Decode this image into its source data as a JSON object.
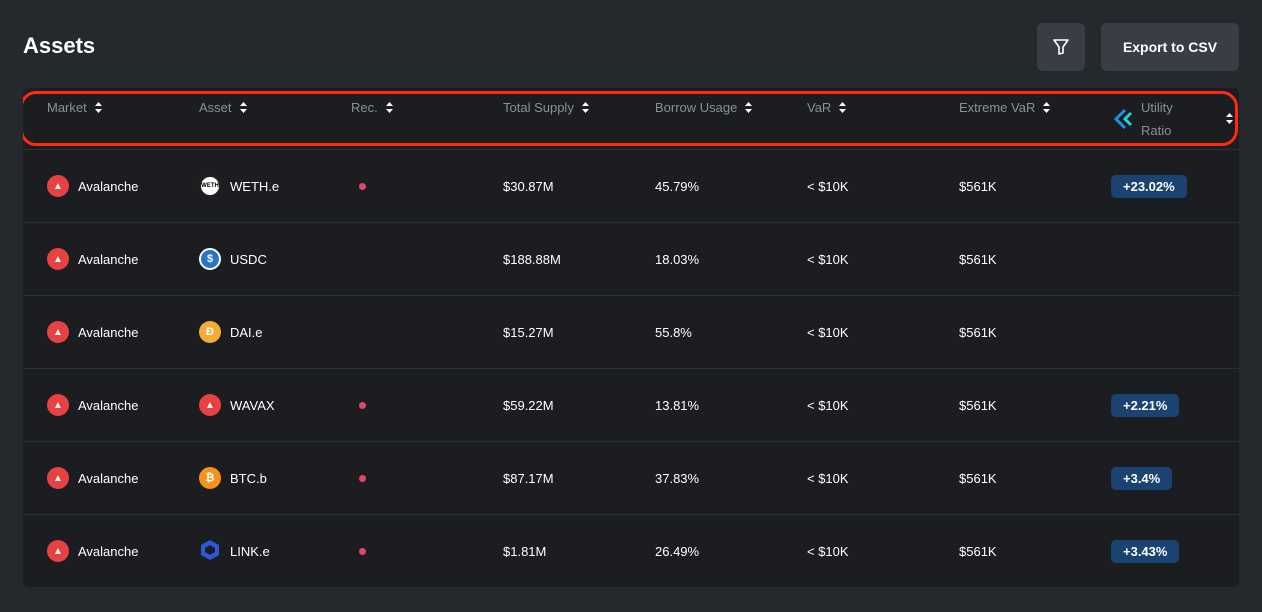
{
  "title": "Assets",
  "export_label": "Export to CSV",
  "columns": [
    "Market",
    "Asset",
    "Rec.",
    "Total Supply",
    "Borrow Usage",
    "VaR",
    "Extreme VaR",
    "Utility",
    "Ratio"
  ],
  "colors": {
    "badge": "#1b4372",
    "rec_dot": "#e0476a",
    "annotation": "#ff2a10"
  },
  "rows": [
    {
      "market": "Avalanche",
      "asset": "WETH.e",
      "icon": "weth-icon",
      "rec": true,
      "supply": "$30.87M",
      "borrow": "45.79%",
      "var": "< $10K",
      "evar": "$561K",
      "util": "+23.02%"
    },
    {
      "market": "Avalanche",
      "asset": "USDC",
      "icon": "usdc-icon",
      "rec": false,
      "supply": "$188.88M",
      "borrow": "18.03%",
      "var": "< $10K",
      "evar": "$561K",
      "util": null
    },
    {
      "market": "Avalanche",
      "asset": "DAI.e",
      "icon": "dai-icon",
      "rec": false,
      "supply": "$15.27M",
      "borrow": "55.8%",
      "var": "< $10K",
      "evar": "$561K",
      "util": null
    },
    {
      "market": "Avalanche",
      "asset": "WAVAX",
      "icon": "avax-icon",
      "rec": true,
      "supply": "$59.22M",
      "borrow": "13.81%",
      "var": "< $10K",
      "evar": "$561K",
      "util": "+2.21%"
    },
    {
      "market": "Avalanche",
      "asset": "BTC.b",
      "icon": "btc-icon",
      "rec": true,
      "supply": "$87.17M",
      "borrow": "37.83%",
      "var": "< $10K",
      "evar": "$561K",
      "util": "+3.4%"
    },
    {
      "market": "Avalanche",
      "asset": "LINK.e",
      "icon": "link-icon",
      "rec": true,
      "supply": "$1.81M",
      "borrow": "26.49%",
      "var": "< $10K",
      "evar": "$561K",
      "util": "+3.43%"
    }
  ]
}
